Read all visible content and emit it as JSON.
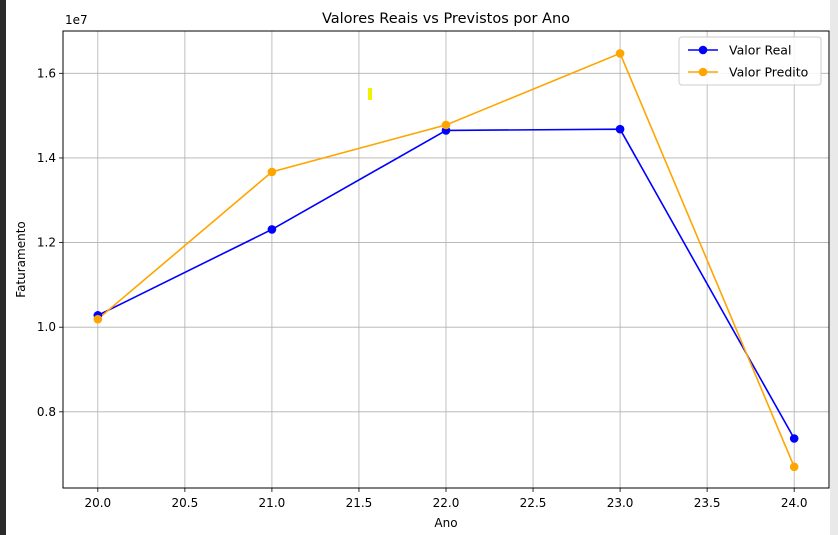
{
  "colors": {
    "real": "#0000ff",
    "predicted": "#ffa500",
    "grid": "#b0b0b0",
    "highlight_marker": "#f2f200"
  },
  "chart_data": {
    "type": "line",
    "title": "Valores Reais vs Previstos por Ano",
    "xlabel": "Ano",
    "ylabel": "Faturamento",
    "y_offset_label": "1e7",
    "xlim": [
      19.8,
      24.2
    ],
    "ylim": [
      0.62,
      1.7
    ],
    "grid": true,
    "legend_position": "top-right",
    "x_ticks": [
      20.0,
      20.5,
      21.0,
      21.5,
      22.0,
      22.5,
      23.0,
      23.5,
      24.0
    ],
    "x_tick_labels": [
      "20.0",
      "20.5",
      "21.0",
      "21.5",
      "22.0",
      "22.5",
      "23.0",
      "23.5",
      "24.0"
    ],
    "y_ticks": [
      0.8,
      1.0,
      1.2,
      1.4,
      1.6
    ],
    "y_tick_labels": [
      "0.8",
      "1.0",
      "1.2",
      "1.4",
      "1.6"
    ],
    "x": [
      20.0,
      21.0,
      22.0,
      23.0,
      24.0
    ],
    "series": [
      {
        "name": "Valor Real",
        "color": "#0000ff",
        "marker": "circle",
        "values": [
          1.028,
          1.231,
          1.465,
          1.468,
          0.737
        ]
      },
      {
        "name": "Valor Predito",
        "color": "#ffa500",
        "marker": "circle",
        "values": [
          1.019,
          1.367,
          1.478,
          1.647,
          0.67
        ]
      }
    ]
  }
}
